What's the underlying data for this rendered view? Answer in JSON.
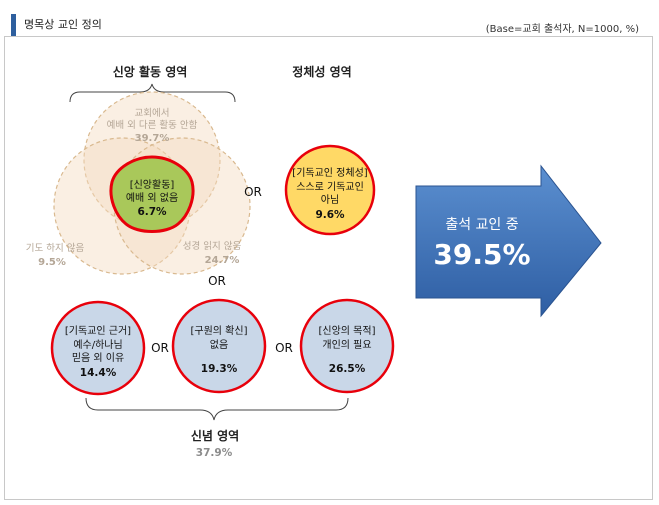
{
  "header": {
    "title": "명목상 교인 정의",
    "base_note": "(Base=교회 출석자, N=1000, %)"
  },
  "faith_activity": {
    "heading": "신앙 활동 영역",
    "top_circle": {
      "line1": "교회에서",
      "line2": "예배 외 다른 활동 안함",
      "value": "39.7%"
    },
    "left_circle": {
      "label": "기도 하지 않음",
      "value": "9.5%"
    },
    "right_circle": {
      "label": "성경 읽지 않음",
      "value": "24.7%"
    },
    "center": {
      "line1": "[신앙활동]",
      "line2": "예배 외 없음",
      "value": "6.7%"
    }
  },
  "identity": {
    "heading": "정체성 영역",
    "circle": {
      "line1": "[기독교인 정체성]",
      "line2": "스스로 기독교인",
      "line3": "아님",
      "value": "9.6%"
    }
  },
  "belief": {
    "heading": "신념 영역",
    "value": "37.9%",
    "circles": [
      {
        "line1": "[기독교인 근거]",
        "line2": "예수/하나님",
        "line3": "믿음 외 이유",
        "value": "14.4%"
      },
      {
        "line1": "[구원의 확신]",
        "line2": "없음",
        "value": "19.3%"
      },
      {
        "line1": "[신앙의 목적]",
        "line2": "개인의 필요",
        "value": "26.5%"
      }
    ]
  },
  "or_label": "OR",
  "result": {
    "label": "출석 교인 중",
    "value": "39.5%"
  },
  "colors": {
    "accent": "#2e5f9e",
    "red_outline": "#e8000b",
    "venn_fill": "#f5dcc0",
    "center_fill": "#a9c85a",
    "identity_fill": "#ffd966",
    "belief_fill": "#c9d7e8",
    "arrow_fill": "#3c71b8"
  }
}
